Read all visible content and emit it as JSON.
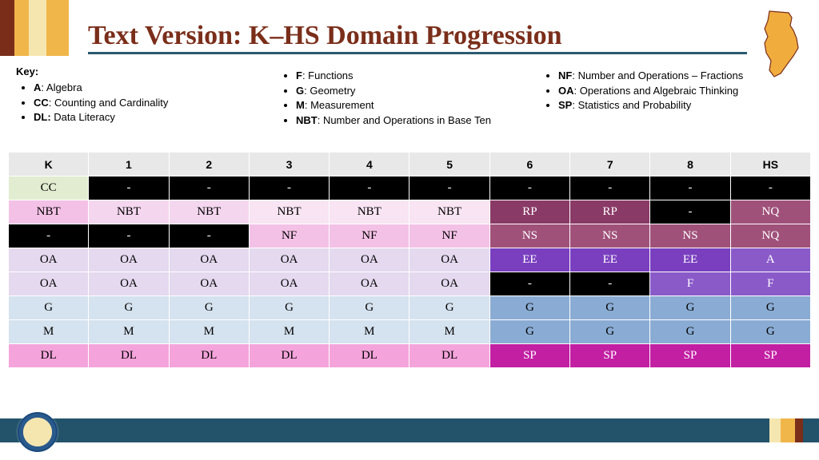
{
  "title": "Text Version: K–HS Domain Progression",
  "top_stripe_colors": [
    "#7a2e1a",
    "#f0b64a",
    "#f5e6b0",
    "#f0b64a"
  ],
  "top_stripe_widths": [
    18,
    18,
    22,
    28
  ],
  "footer_stripe_colors": [
    "#f5e6b0",
    "#f0b64a",
    "#7a2e1a",
    "#23536b"
  ],
  "footer_stripe_widths": [
    14,
    18,
    10,
    20
  ],
  "nj_fill": "#f0ad3e",
  "nj_stroke": "#7a2e1a",
  "key": {
    "heading": "Key:",
    "col1": [
      {
        "abbr": "A",
        "text": "Algebra"
      },
      {
        "abbr": "CC",
        "text": "Counting and Cardinality"
      },
      {
        "abbr": "DL:",
        "text": "Data Literacy"
      }
    ],
    "col2": [
      {
        "abbr": "F",
        "text": "Functions"
      },
      {
        "abbr": "G",
        "text": "Geometry"
      },
      {
        "abbr": "M",
        "text": "Measurement"
      },
      {
        "abbr": "NBT",
        "text": "Number and Operations in Base Ten"
      }
    ],
    "col3": [
      {
        "abbr": "NF",
        "text": "Number and Operations – Fractions"
      },
      {
        "abbr": "OA",
        "text": "Operations and Algebraic Thinking"
      },
      {
        "abbr": "SP",
        "text": "Statistics and Probability"
      }
    ]
  },
  "table": {
    "header_bg": "#e8e8e8",
    "header_fg": "#000000",
    "columns": [
      "K",
      "1",
      "2",
      "3",
      "4",
      "5",
      "6",
      "7",
      "8",
      "HS"
    ],
    "rows": [
      [
        {
          "t": "CC",
          "bg": "#e2ecd0",
          "fg": "#000000"
        },
        {
          "t": "-",
          "bg": "#000000",
          "fg": "#ffffff"
        },
        {
          "t": "-",
          "bg": "#000000",
          "fg": "#ffffff"
        },
        {
          "t": "-",
          "bg": "#000000",
          "fg": "#ffffff"
        },
        {
          "t": "-",
          "bg": "#000000",
          "fg": "#ffffff"
        },
        {
          "t": "-",
          "bg": "#000000",
          "fg": "#ffffff"
        },
        {
          "t": "-",
          "bg": "#000000",
          "fg": "#ffffff"
        },
        {
          "t": "-",
          "bg": "#000000",
          "fg": "#ffffff"
        },
        {
          "t": "-",
          "bg": "#000000",
          "fg": "#ffffff"
        },
        {
          "t": "-",
          "bg": "#000000",
          "fg": "#ffffff"
        }
      ],
      [
        {
          "t": "NBT",
          "bg": "#f4c1e6",
          "fg": "#000000"
        },
        {
          "t": "NBT",
          "bg": "#f4d6ee",
          "fg": "#000000"
        },
        {
          "t": "NBT",
          "bg": "#f4d6ee",
          "fg": "#000000"
        },
        {
          "t": "NBT",
          "bg": "#f8e4f3",
          "fg": "#000000"
        },
        {
          "t": "NBT",
          "bg": "#f8e4f3",
          "fg": "#000000"
        },
        {
          "t": "NBT",
          "bg": "#f8e4f3",
          "fg": "#000000"
        },
        {
          "t": "RP",
          "bg": "#8a3a66",
          "fg": "#ffffff"
        },
        {
          "t": "RP",
          "bg": "#8a3a66",
          "fg": "#ffffff"
        },
        {
          "t": "-",
          "bg": "#000000",
          "fg": "#ffffff"
        },
        {
          "t": "NQ",
          "bg": "#a0517a",
          "fg": "#ffffff"
        }
      ],
      [
        {
          "t": "-",
          "bg": "#000000",
          "fg": "#ffffff"
        },
        {
          "t": "-",
          "bg": "#000000",
          "fg": "#ffffff"
        },
        {
          "t": "-",
          "bg": "#000000",
          "fg": "#ffffff"
        },
        {
          "t": "NF",
          "bg": "#f4c1e6",
          "fg": "#000000"
        },
        {
          "t": "NF",
          "bg": "#f4c1e6",
          "fg": "#000000"
        },
        {
          "t": "NF",
          "bg": "#f4c1e6",
          "fg": "#000000"
        },
        {
          "t": "NS",
          "bg": "#a0517a",
          "fg": "#ffffff"
        },
        {
          "t": "NS",
          "bg": "#a0517a",
          "fg": "#ffffff"
        },
        {
          "t": "NS",
          "bg": "#a0517a",
          "fg": "#ffffff"
        },
        {
          "t": "NQ",
          "bg": "#a0517a",
          "fg": "#ffffff"
        }
      ],
      [
        {
          "t": "OA",
          "bg": "#e4d9ef",
          "fg": "#000000"
        },
        {
          "t": "OA",
          "bg": "#e4d9ef",
          "fg": "#000000"
        },
        {
          "t": "OA",
          "bg": "#e4d9ef",
          "fg": "#000000"
        },
        {
          "t": "OA",
          "bg": "#e4d9ef",
          "fg": "#000000"
        },
        {
          "t": "OA",
          "bg": "#e4d9ef",
          "fg": "#000000"
        },
        {
          "t": "OA",
          "bg": "#e4d9ef",
          "fg": "#000000"
        },
        {
          "t": "EE",
          "bg": "#7a3fbf",
          "fg": "#ffffff"
        },
        {
          "t": "EE",
          "bg": "#7a3fbf",
          "fg": "#ffffff"
        },
        {
          "t": "EE",
          "bg": "#7a3fbf",
          "fg": "#ffffff"
        },
        {
          "t": "A",
          "bg": "#8a5ac9",
          "fg": "#ffffff"
        }
      ],
      [
        {
          "t": "OA",
          "bg": "#e4d9ef",
          "fg": "#000000"
        },
        {
          "t": "OA",
          "bg": "#e4d9ef",
          "fg": "#000000"
        },
        {
          "t": "OA",
          "bg": "#e4d9ef",
          "fg": "#000000"
        },
        {
          "t": "OA",
          "bg": "#e4d9ef",
          "fg": "#000000"
        },
        {
          "t": "OA",
          "bg": "#e4d9ef",
          "fg": "#000000"
        },
        {
          "t": "OA",
          "bg": "#e4d9ef",
          "fg": "#000000"
        },
        {
          "t": "-",
          "bg": "#000000",
          "fg": "#ffffff"
        },
        {
          "t": "-",
          "bg": "#000000",
          "fg": "#ffffff"
        },
        {
          "t": "F",
          "bg": "#8a5ac9",
          "fg": "#ffffff"
        },
        {
          "t": "F",
          "bg": "#8a5ac9",
          "fg": "#ffffff"
        }
      ],
      [
        {
          "t": "G",
          "bg": "#d5e2ef",
          "fg": "#000000"
        },
        {
          "t": "G",
          "bg": "#d5e2ef",
          "fg": "#000000"
        },
        {
          "t": "G",
          "bg": "#d5e2ef",
          "fg": "#000000"
        },
        {
          "t": "G",
          "bg": "#d5e2ef",
          "fg": "#000000"
        },
        {
          "t": "G",
          "bg": "#d5e2ef",
          "fg": "#000000"
        },
        {
          "t": "G",
          "bg": "#d5e2ef",
          "fg": "#000000"
        },
        {
          "t": "G",
          "bg": "#8aacd4",
          "fg": "#000000"
        },
        {
          "t": "G",
          "bg": "#8aacd4",
          "fg": "#000000"
        },
        {
          "t": "G",
          "bg": "#8aacd4",
          "fg": "#000000"
        },
        {
          "t": "G",
          "bg": "#8aacd4",
          "fg": "#000000"
        }
      ],
      [
        {
          "t": "M",
          "bg": "#d5e2ef",
          "fg": "#000000"
        },
        {
          "t": "M",
          "bg": "#d5e2ef",
          "fg": "#000000"
        },
        {
          "t": "M",
          "bg": "#d5e2ef",
          "fg": "#000000"
        },
        {
          "t": "M",
          "bg": "#d5e2ef",
          "fg": "#000000"
        },
        {
          "t": "M",
          "bg": "#d5e2ef",
          "fg": "#000000"
        },
        {
          "t": "M",
          "bg": "#d5e2ef",
          "fg": "#000000"
        },
        {
          "t": "G",
          "bg": "#8aacd4",
          "fg": "#000000"
        },
        {
          "t": "G",
          "bg": "#8aacd4",
          "fg": "#000000"
        },
        {
          "t": "G",
          "bg": "#8aacd4",
          "fg": "#000000"
        },
        {
          "t": "G",
          "bg": "#8aacd4",
          "fg": "#000000"
        }
      ],
      [
        {
          "t": "DL",
          "bg": "#f4a4db",
          "fg": "#000000"
        },
        {
          "t": "DL",
          "bg": "#f4a4db",
          "fg": "#000000"
        },
        {
          "t": "DL",
          "bg": "#f4a4db",
          "fg": "#000000"
        },
        {
          "t": "DL",
          "bg": "#f4a4db",
          "fg": "#000000"
        },
        {
          "t": "DL",
          "bg": "#f4a4db",
          "fg": "#000000"
        },
        {
          "t": "DL",
          "bg": "#f4a4db",
          "fg": "#000000"
        },
        {
          "t": "SP",
          "bg": "#c21fa3",
          "fg": "#ffffff"
        },
        {
          "t": "SP",
          "bg": "#c21fa3",
          "fg": "#ffffff"
        },
        {
          "t": "SP",
          "bg": "#c21fa3",
          "fg": "#ffffff"
        },
        {
          "t": "SP",
          "bg": "#c21fa3",
          "fg": "#ffffff"
        }
      ]
    ]
  }
}
